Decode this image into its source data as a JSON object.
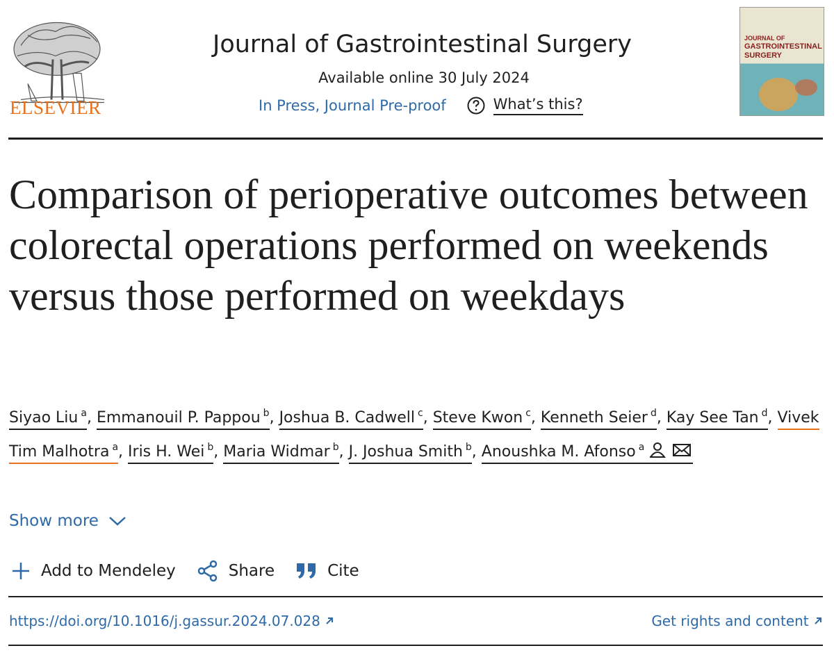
{
  "header": {
    "publisher": "ELSEVIER",
    "journal": "Journal of Gastrointestinal Surgery",
    "available": "Available online 30 July 2024",
    "status": "In Press, Journal Pre-proof",
    "help": "What’s this?"
  },
  "cover": {
    "lines": [
      "JOURNAL OF",
      "GASTROINTESTINAL",
      "SURGERY"
    ]
  },
  "title": "Comparison of perioperative outcomes between colorectal operations performed on weekends versus those performed on weekdays",
  "author_separator": ",",
  "authors": [
    {
      "name": "Siyao Liu",
      "sup": "a"
    },
    {
      "name": "Emmanouil P. Pappou",
      "sup": "b"
    },
    {
      "name": "Joshua B. Cadwell",
      "sup": "c"
    },
    {
      "name": "Steve Kwon",
      "sup": "c"
    },
    {
      "name": "Kenneth Seier",
      "sup": "d"
    },
    {
      "name": "Kay See Tan",
      "sup": "d"
    },
    {
      "name": "Vivek Tim Malhotra",
      "sup": "a"
    },
    {
      "name": "Iris H. Wei",
      "sup": "b"
    },
    {
      "name": "Maria Widmar",
      "sup": "b"
    },
    {
      "name": "J. Joshua Smith",
      "sup": "b"
    },
    {
      "name": "Anoushka M. Afonso",
      "sup": "a"
    }
  ],
  "show_more": "Show more",
  "actions": [
    "Add to Mendeley",
    "Share",
    "Cite"
  ],
  "doi": "https://doi.org/10.1016/j.gassur.2024.07.028",
  "rights": "Get rights and content"
}
